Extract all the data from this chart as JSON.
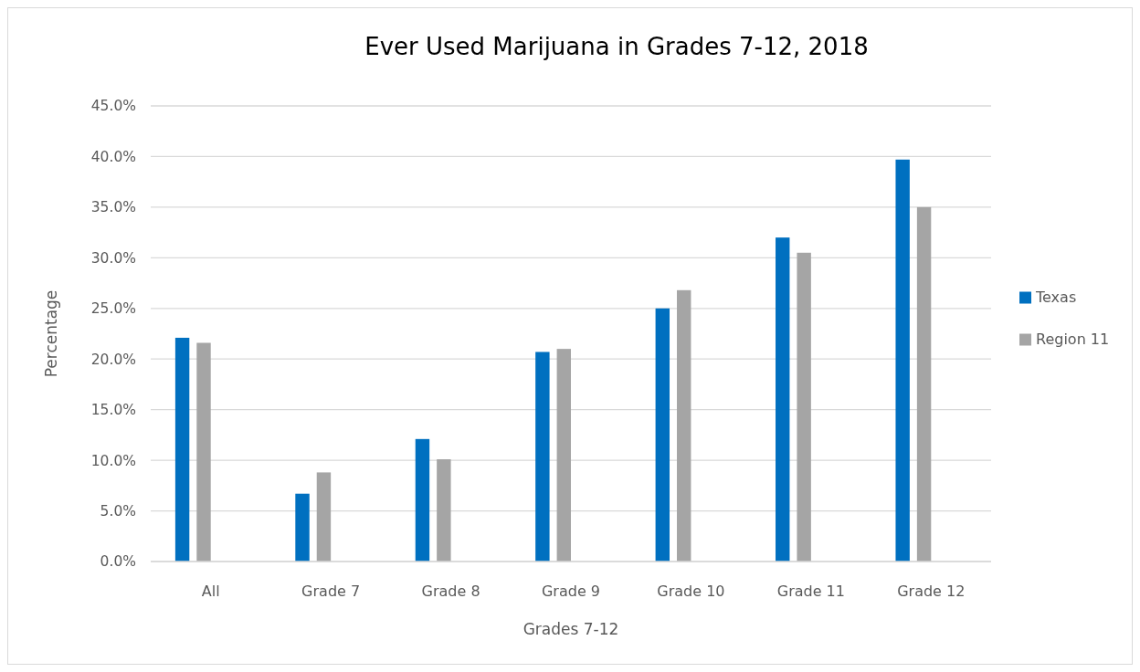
{
  "chart_data": {
    "type": "bar",
    "title": "Ever Used Marijuana in Grades 7-12, 2018",
    "xlabel": "Grades 7-12",
    "ylabel": "Percentage",
    "categories": [
      "All",
      "Grade 7",
      "Grade 8",
      "Grade 9",
      "Grade 10",
      "Grade 11",
      "Grade 12"
    ],
    "series": [
      {
        "name": "Texas",
        "color": "#0070c0",
        "values": [
          22.1,
          6.7,
          12.1,
          20.7,
          25.0,
          32.0,
          39.7
        ]
      },
      {
        "name": "Region 11",
        "color": "#a5a5a5",
        "values": [
          21.6,
          8.8,
          10.1,
          21.0,
          26.8,
          30.5,
          35.0
        ]
      }
    ],
    "ylim": [
      0,
      45
    ],
    "yticks": [
      {
        "value": 0,
        "label": "0.0%"
      },
      {
        "value": 5,
        "label": "5.0%"
      },
      {
        "value": 10,
        "label": "10.0%"
      },
      {
        "value": 15,
        "label": "15.0%"
      },
      {
        "value": 20,
        "label": "20.0%"
      },
      {
        "value": 25,
        "label": "25.0%"
      },
      {
        "value": 30,
        "label": "30.0%"
      },
      {
        "value": 35,
        "label": "35.0%"
      },
      {
        "value": 40,
        "label": "40.0%"
      },
      {
        "value": 45,
        "label": "45.0%"
      }
    ],
    "grid": "y",
    "legend": "right"
  }
}
